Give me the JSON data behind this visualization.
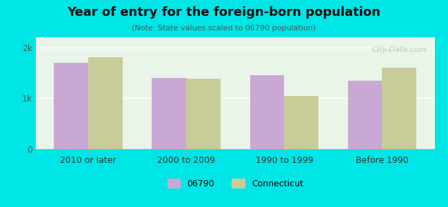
{
  "title": "Year of entry for the foreign-born population",
  "subtitle": "(Note: State values scaled to 06790 population)",
  "categories": [
    "2010 or later",
    "2000 to 2009",
    "1990 to 1999",
    "Before 1990"
  ],
  "values_06790": [
    1700,
    1400,
    1450,
    1350
  ],
  "values_ct": [
    1800,
    1380,
    1050,
    1600
  ],
  "color_06790": "#c9a8d4",
  "color_ct": "#c8cc99",
  "background_outer": "#00e5e5",
  "background_chart": "#e8f5e8",
  "ylim": [
    0,
    2200
  ],
  "yticks": [
    0,
    1000,
    2000
  ],
  "ytick_labels": [
    "0",
    "1k",
    "2k"
  ],
  "legend_06790": "06790",
  "legend_ct": "Connecticut",
  "bar_width": 0.35
}
